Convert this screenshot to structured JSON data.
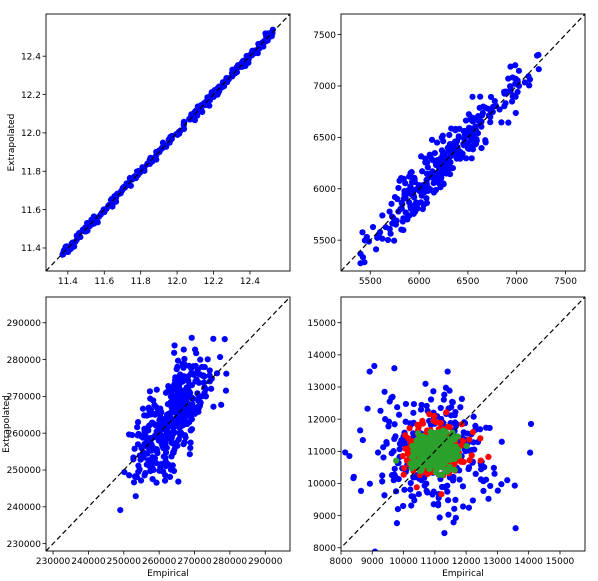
{
  "chart_data": [
    {
      "type": "scatter",
      "xlabel": "",
      "ylabel": "Extrapolated",
      "xlim": [
        11.28,
        12.62
      ],
      "ylim": [
        11.28,
        12.62
      ],
      "xticks": [
        "11.4",
        "11.6",
        "11.8",
        "12.0",
        "12.2",
        "12.4"
      ],
      "yticks": [
        "11.4",
        "11.6",
        "11.8",
        "12.0",
        "12.2",
        "12.4"
      ],
      "reference_line": "y = x (dashed black)",
      "grid": false,
      "series": [
        {
          "color": "#0000ff",
          "n": 300,
          "x_range": [
            11.37,
            12.53
          ],
          "relation": "y ≈ x",
          "noise_sd": 0.012
        }
      ]
    },
    {
      "type": "scatter",
      "xlabel": "",
      "ylabel": "",
      "xlim": [
        5200,
        7700
      ],
      "ylim": [
        5200,
        7700
      ],
      "xticks": [
        "5500",
        "6000",
        "6500",
        "7000",
        "7500"
      ],
      "yticks": [
        "5500",
        "6000",
        "6500",
        "7000",
        "7500"
      ],
      "reference_line": "y = x (dashed black)",
      "grid": false,
      "series": [
        {
          "color": "#0000ff",
          "n": 330,
          "x_center": 6300,
          "x_sd": 380,
          "x_range": [
            5400,
            7400
          ],
          "relation": "y ≈ x",
          "noise_sd": 130
        }
      ]
    },
    {
      "type": "scatter",
      "xlabel": "Empirical",
      "ylabel": "Extrapolated",
      "xlim": [
        228000,
        297000
      ],
      "ylim": [
        228000,
        297000
      ],
      "xticks": [
        "230000",
        "240000",
        "250000",
        "260000",
        "270000",
        "280000",
        "290000"
      ],
      "yticks": [
        "230000",
        "240000",
        "250000",
        "260000",
        "270000",
        "280000",
        "290000"
      ],
      "reference_line": "y = x (dashed black)",
      "grid": false,
      "series": [
        {
          "color": "#0000ff",
          "n": 420,
          "x_center": 263000,
          "x_sd": 5500,
          "x_range": [
            249000,
            279000
          ],
          "relation": "y ≈ 0.95x",
          "noise_sd": 6500
        }
      ]
    },
    {
      "type": "scatter",
      "xlabel": "Empirical",
      "ylabel": "",
      "xlim": [
        8000,
        15800
      ],
      "ylim": [
        7900,
        15800
      ],
      "xticks": [
        "8000",
        "9000",
        "10000",
        "11000",
        "12000",
        "13000",
        "14000",
        "15000"
      ],
      "yticks": [
        "8000",
        "9000",
        "10000",
        "11000",
        "12000",
        "13000",
        "14000",
        "15000"
      ],
      "reference_line": "y = x (dashed black)",
      "grid": false,
      "series": [
        {
          "color": "#0000ff",
          "n": 300,
          "x_center": 11000,
          "x_sd": 1050,
          "y_center": 11000,
          "y_sd": 1000
        },
        {
          "color": "#ff0000",
          "n": 250,
          "x_center": 11000,
          "x_sd": 480,
          "y_center": 11000,
          "y_sd": 420
        },
        {
          "color": "#2ca02c",
          "n": 400,
          "x_center": 11000,
          "x_sd": 330,
          "y_center": 11000,
          "y_sd": 300
        }
      ]
    }
  ]
}
